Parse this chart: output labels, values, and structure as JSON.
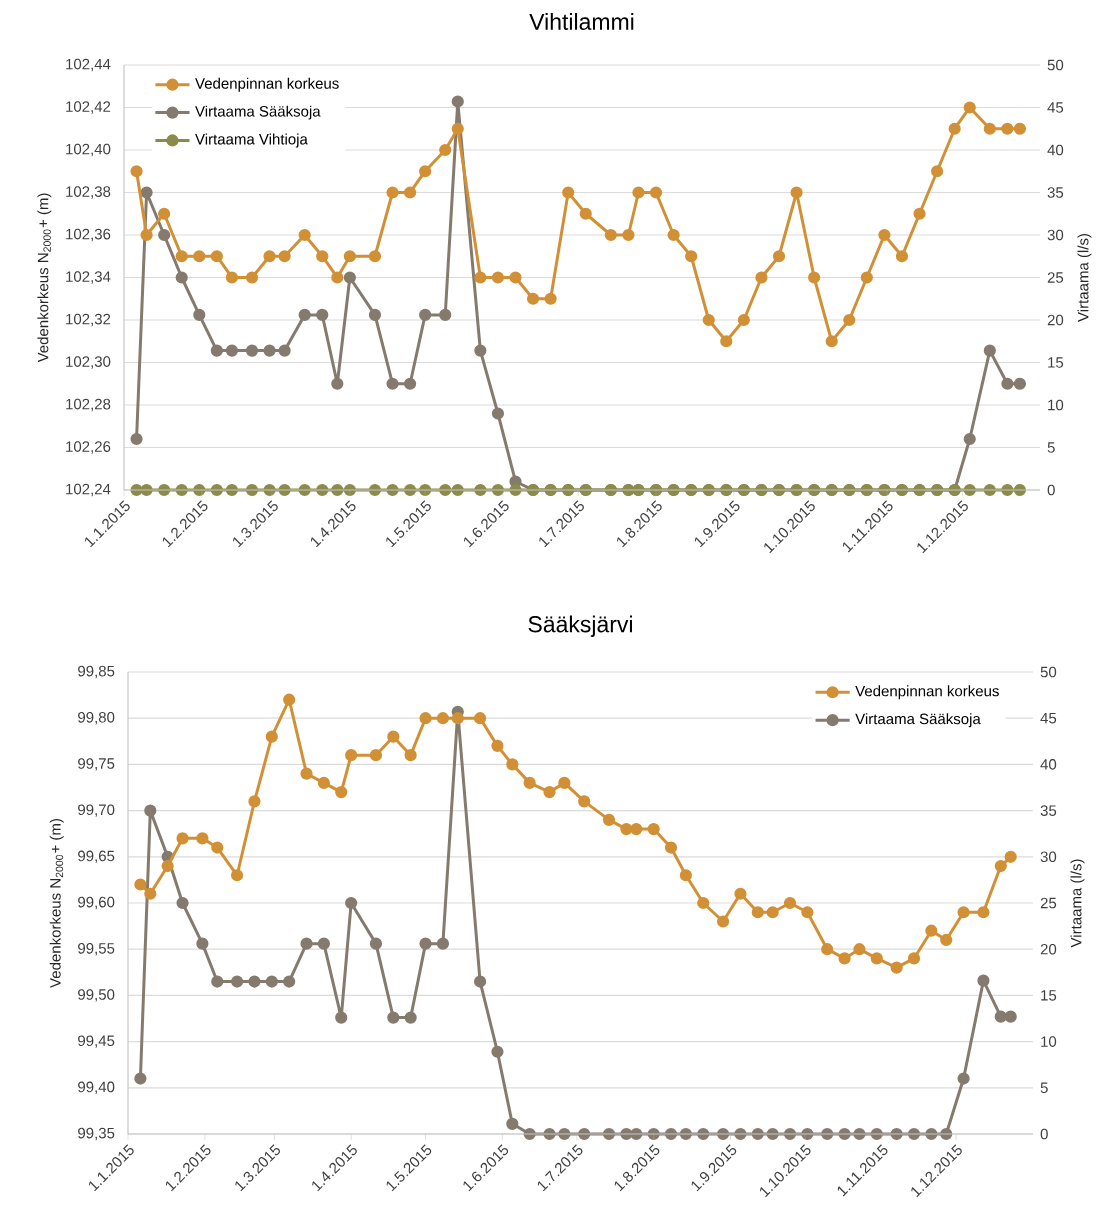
{
  "chart_data": [
    {
      "type": "line",
      "title": "Vihtilammi",
      "ylabel": "Vedenkorkeus N$_{2000}$+ (m)",
      "y2label": "Virtaama (l/s)",
      "x": [
        "2015-01-06",
        "2015-01-10",
        "2015-01-17",
        "2015-01-24",
        "2015-01-31",
        "2015-02-07",
        "2015-02-13",
        "2015-02-21",
        "2015-02-28",
        "2015-03-06",
        "2015-03-14",
        "2015-03-21",
        "2015-03-27",
        "2015-04-01",
        "2015-04-11",
        "2015-04-18",
        "2015-04-25",
        "2015-05-01",
        "2015-05-09",
        "2015-05-14",
        "2015-05-23",
        "2015-05-30",
        "2015-06-06",
        "2015-06-13",
        "2015-06-20",
        "2015-06-27",
        "2015-07-04",
        "2015-07-14",
        "2015-07-21",
        "2015-07-25",
        "2015-08-01",
        "2015-08-08",
        "2015-08-15",
        "2015-08-22",
        "2015-08-29",
        "2015-09-05",
        "2015-09-12",
        "2015-09-19",
        "2015-09-26",
        "2015-10-03",
        "2015-10-10",
        "2015-10-17",
        "2015-10-24",
        "2015-10-31",
        "2015-11-07",
        "2015-11-14",
        "2015-11-21",
        "2015-11-28",
        "2015-12-04",
        "2015-12-12",
        "2015-12-19",
        "2015-12-24"
      ],
      "series": [
        {
          "name": "Vedenpinnan korkeus",
          "color": "#d29036",
          "values": [
            102.39,
            102.36,
            102.37,
            102.35,
            102.35,
            102.35,
            102.34,
            102.34,
            102.35,
            102.35,
            102.36,
            102.35,
            102.34,
            102.35,
            102.35,
            102.38,
            102.38,
            102.39,
            102.4,
            102.41,
            102.34,
            102.34,
            102.34,
            102.33,
            102.33,
            102.38,
            102.37,
            102.36,
            102.36,
            102.38,
            102.38,
            102.36,
            102.35,
            102.32,
            102.31,
            102.32,
            102.34,
            102.35,
            102.38,
            102.34,
            102.31,
            102.32,
            102.34,
            102.36,
            102.35,
            102.37,
            102.39,
            102.41,
            102.42,
            102.41,
            102.41,
            102.41
          ]
        },
        {
          "name": "Virtaama Sääksoja",
          "color": "#857a6e",
          "axis": "y2",
          "values": [
            6,
            35,
            30,
            25,
            20.6,
            16.4,
            16.4,
            16.4,
            16.4,
            16.4,
            20.6,
            20.6,
            12.5,
            25,
            20.6,
            12.5,
            12.5,
            20.6,
            20.6,
            45.7,
            16.4,
            9,
            1,
            0,
            0,
            0,
            0,
            0,
            0,
            0,
            0,
            0,
            0,
            0,
            0,
            0,
            0,
            0,
            0,
            0,
            0,
            0,
            0,
            0,
            0,
            0,
            0,
            0,
            6,
            16.4,
            12.5,
            12.5
          ]
        },
        {
          "name": "Virtaama Vihtioja",
          "color": "#8b8b4b",
          "axis": "y2",
          "values": [
            0,
            0,
            0,
            0,
            0,
            0,
            0,
            0,
            0,
            0,
            0,
            0,
            0,
            0,
            0,
            0,
            0,
            0,
            0,
            0,
            0,
            0,
            0,
            0,
            0,
            0,
            0,
            0,
            0,
            0,
            0,
            0,
            0,
            0,
            0,
            0,
            0,
            0,
            0,
            0,
            0,
            0,
            0,
            0,
            0,
            0,
            0,
            0,
            0,
            0,
            0,
            0
          ]
        }
      ],
      "xlim": [
        "2015-01-01",
        "2016-01-01"
      ],
      "xticks": [
        {
          "value": "2015-01-01",
          "label": "1.1.2015"
        },
        {
          "value": "2015-02-01",
          "label": "1.2.2015"
        },
        {
          "value": "2015-03-01",
          "label": "1.3.2015"
        },
        {
          "value": "2015-04-01",
          "label": "1.4.2015"
        },
        {
          "value": "2015-05-01",
          "label": "1.5.2015"
        },
        {
          "value": "2015-06-01",
          "label": "1.6.2015"
        },
        {
          "value": "2015-07-01",
          "label": "1.7.2015"
        },
        {
          "value": "2015-08-01",
          "label": "1.8.2015"
        },
        {
          "value": "2015-09-01",
          "label": "1.9.2015"
        },
        {
          "value": "2015-10-01",
          "label": "1.10.2015"
        },
        {
          "value": "2015-11-01",
          "label": "1.11.2015"
        },
        {
          "value": "2015-12-01",
          "label": "1.12.2015"
        }
      ],
      "ylim": [
        102.24,
        102.44
      ],
      "yticks": [
        {
          "value": 102.24,
          "label": "102,24"
        },
        {
          "value": 102.26,
          "label": "102,26"
        },
        {
          "value": 102.28,
          "label": "102,28"
        },
        {
          "value": 102.3,
          "label": "102,30"
        },
        {
          "value": 102.32,
          "label": "102,32"
        },
        {
          "value": 102.34,
          "label": "102,34"
        },
        {
          "value": 102.36,
          "label": "102,36"
        },
        {
          "value": 102.38,
          "label": "102,38"
        },
        {
          "value": 102.4,
          "label": "102,40"
        },
        {
          "value": 102.42,
          "label": "102,42"
        },
        {
          "value": 102.44,
          "label": "102,44"
        }
      ],
      "y2lim": [
        0,
        50
      ],
      "y2ticks": [
        0,
        5,
        10,
        15,
        20,
        25,
        30,
        35,
        40,
        45,
        50
      ],
      "grid": "y",
      "legend": "top left",
      "marker": "circle",
      "line_style": "solid"
    },
    {
      "type": "line",
      "title": "Sääksjärvi",
      "ylabel": "Vedenkorkeus N$_{2000}$+ (m)",
      "y2label": "Virtaama (l/s)",
      "x": [
        "2015-01-06",
        "2015-01-10",
        "2015-01-17",
        "2015-01-23",
        "2015-01-31",
        "2015-02-06",
        "2015-02-14",
        "2015-02-21",
        "2015-02-28",
        "2015-03-07",
        "2015-03-14",
        "2015-03-21",
        "2015-03-28",
        "2015-04-01",
        "2015-04-11",
        "2015-04-18",
        "2015-04-25",
        "2015-05-01",
        "2015-05-08",
        "2015-05-14",
        "2015-05-23",
        "2015-05-30",
        "2015-06-05",
        "2015-06-12",
        "2015-06-20",
        "2015-06-26",
        "2015-07-04",
        "2015-07-14",
        "2015-07-21",
        "2015-07-25",
        "2015-08-01",
        "2015-08-08",
        "2015-08-14",
        "2015-08-21",
        "2015-08-29",
        "2015-09-05",
        "2015-09-12",
        "2015-09-18",
        "2015-09-25",
        "2015-10-02",
        "2015-10-10",
        "2015-10-17",
        "2015-10-23",
        "2015-10-30",
        "2015-11-07",
        "2015-11-14",
        "2015-11-21",
        "2015-11-27",
        "2015-12-04",
        "2015-12-12",
        "2015-12-19",
        "2015-12-23"
      ],
      "series": [
        {
          "name": "Vedenpinnan korkeus",
          "color": "#d29036",
          "values": [
            99.62,
            99.61,
            99.64,
            99.67,
            99.67,
            99.66,
            99.63,
            99.71,
            99.78,
            99.82,
            99.74,
            99.73,
            99.72,
            99.76,
            99.76,
            99.78,
            99.76,
            99.8,
            99.8,
            99.8,
            99.8,
            99.77,
            99.75,
            99.73,
            99.72,
            99.73,
            99.71,
            99.69,
            99.68,
            99.68,
            99.68,
            99.66,
            99.63,
            99.6,
            99.58,
            99.61,
            99.59,
            99.59,
            99.6,
            99.59,
            99.55,
            99.54,
            99.55,
            99.54,
            99.53,
            99.54,
            99.57,
            99.56,
            99.59,
            99.59,
            99.64,
            99.65
          ]
        },
        {
          "name": "Virtaama Sääksoja",
          "color": "#857a6e",
          "axis": "y2",
          "values": [
            6,
            35,
            30,
            25,
            20.6,
            16.5,
            16.5,
            16.5,
            16.5,
            16.5,
            20.6,
            20.6,
            12.6,
            25,
            20.6,
            12.6,
            12.6,
            20.6,
            20.6,
            45.7,
            16.5,
            8.9,
            1.1,
            0,
            0,
            0,
            0,
            0,
            0,
            0,
            0,
            0,
            0,
            0,
            0,
            0,
            0,
            0,
            0,
            0,
            0,
            0,
            0,
            0,
            0,
            0,
            0,
            0,
            6,
            16.6,
            12.7,
            12.7
          ]
        }
      ],
      "xlim": [
        "2015-01-01",
        "2016-01-01"
      ],
      "xticks": [
        {
          "value": "2015-01-01",
          "label": "1.1.2015"
        },
        {
          "value": "2015-02-01",
          "label": "1.2.2015"
        },
        {
          "value": "2015-03-01",
          "label": "1.3.2015"
        },
        {
          "value": "2015-04-01",
          "label": "1.4.2015"
        },
        {
          "value": "2015-05-01",
          "label": "1.5.2015"
        },
        {
          "value": "2015-06-01",
          "label": "1.6.2015"
        },
        {
          "value": "2015-07-01",
          "label": "1.7.2015"
        },
        {
          "value": "2015-08-01",
          "label": "1.8.2015"
        },
        {
          "value": "2015-09-01",
          "label": "1.9.2015"
        },
        {
          "value": "2015-10-01",
          "label": "1.10.2015"
        },
        {
          "value": "2015-11-01",
          "label": "1.11.2015"
        },
        {
          "value": "2015-12-01",
          "label": "1.12.2015"
        }
      ],
      "ylim": [
        99.35,
        99.85
      ],
      "yticks": [
        {
          "value": 99.35,
          "label": "99,35"
        },
        {
          "value": 99.4,
          "label": "99,40"
        },
        {
          "value": 99.45,
          "label": "99,45"
        },
        {
          "value": 99.5,
          "label": "99,50"
        },
        {
          "value": 99.55,
          "label": "99,55"
        },
        {
          "value": 99.6,
          "label": "99,60"
        },
        {
          "value": 99.65,
          "label": "99,65"
        },
        {
          "value": 99.7,
          "label": "99,70"
        },
        {
          "value": 99.75,
          "label": "99,75"
        },
        {
          "value": 99.8,
          "label": "99,80"
        },
        {
          "value": 99.85,
          "label": "99,85"
        }
      ],
      "y2lim": [
        0,
        50
      ],
      "y2ticks": [
        0,
        5,
        10,
        15,
        20,
        25,
        30,
        35,
        40,
        45,
        50
      ],
      "grid": "y",
      "legend": "top right",
      "marker": "circle",
      "line_style": "solid"
    }
  ]
}
